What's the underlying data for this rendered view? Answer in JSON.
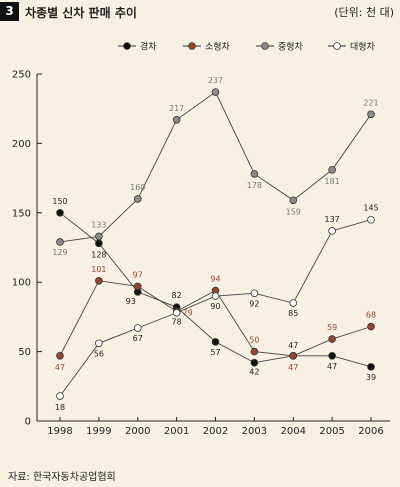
{
  "header": {
    "number": "3",
    "title": "차종별 신차 판매 추이",
    "unit": "(단위: 천 대)"
  },
  "source": "자료: 한국자동차공업협회",
  "chart_data": {
    "type": "line",
    "title": "차종별 신차 판매 추이",
    "xlabel": "",
    "ylabel": "",
    "ylim": [
      0,
      250
    ],
    "yticks": [
      0,
      50,
      100,
      150,
      200,
      250
    ],
    "categories": [
      "1998",
      "1999",
      "2000",
      "2001",
      "2002",
      "2003",
      "2004",
      "2005",
      "2006"
    ],
    "legend_position": "top",
    "grid": false,
    "series": [
      {
        "name": "경차",
        "color": "#111111",
        "label_color": "#222222",
        "values": [
          150,
          128,
          93,
          82,
          57,
          42,
          47,
          47,
          39
        ]
      },
      {
        "name": "소형차",
        "color": "#a0422a",
        "label_color": "#a0422a",
        "values": [
          47,
          101,
          97,
          79,
          94,
          50,
          47,
          59,
          68
        ]
      },
      {
        "name": "중형차",
        "color": "#8c8c8c",
        "label_color": "#777777",
        "values": [
          129,
          133,
          160,
          217,
          237,
          178,
          159,
          181,
          221
        ]
      },
      {
        "name": "대형차",
        "color": "#ffffff",
        "label_color": "#222222",
        "values": [
          18,
          56,
          67,
          78,
          90,
          92,
          85,
          137,
          145
        ]
      }
    ]
  }
}
